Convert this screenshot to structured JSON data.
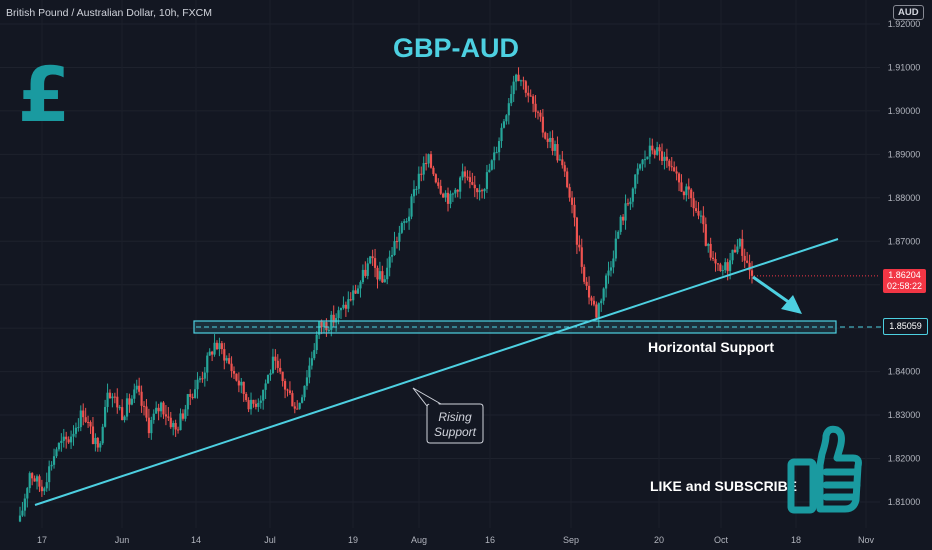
{
  "header": {
    "symbol": "British Pound / Australian Dollar, 10h, FXCM",
    "currency": "AUD"
  },
  "price_boxes": {
    "current_price": "1.86204",
    "countdown": "02:58:22",
    "support_level": "1.85059"
  },
  "annotations": {
    "title": "GBP-AUD",
    "horizontal_support": "Horizontal Support",
    "rising_support_line1": "Rising",
    "rising_support_line2": "Support",
    "cta": "LIKE and SUBSCRIBE"
  },
  "icons": {
    "pound": "£",
    "thumb": "thumbs-up-icon"
  },
  "colors": {
    "background": "#131722",
    "up": "#26a69a",
    "down": "#ef5350",
    "accent": "#4dd0e1",
    "pound": "#1a9aa0",
    "current_price": "#f23645"
  },
  "chart_data": {
    "type": "candlestick",
    "symbol": "British Pound / Australian Dollar",
    "timeframe": "10h",
    "source": "FXCM",
    "y_ticks": [
      "1.92000",
      "1.91000",
      "1.90000",
      "1.89000",
      "1.88000",
      "1.87000",
      "1.86000",
      "1.85000",
      "1.84000",
      "1.83000",
      "1.82000",
      "1.81000"
    ],
    "y_range": [
      1.8035,
      1.92
    ],
    "x_ticks": [
      "17",
      "Jun",
      "14",
      "Jul",
      "19",
      "Aug",
      "16",
      "Sep",
      "20",
      "Oct",
      "18",
      "Nov"
    ],
    "current_price": 1.86204,
    "horizontal_support": 1.85059,
    "rising_support": {
      "from": {
        "time": "May 17",
        "price": 1.8095
      },
      "to": {
        "time": "Oct 27",
        "price": 1.8705
      }
    },
    "path": [
      [
        0,
        1.8055
      ],
      [
        4,
        1.817
      ],
      [
        9,
        1.813
      ],
      [
        15,
        1.8225
      ],
      [
        20,
        1.8245
      ],
      [
        26,
        1.831
      ],
      [
        32,
        1.8215
      ],
      [
        36,
        1.8365
      ],
      [
        42,
        1.8305
      ],
      [
        48,
        1.8355
      ],
      [
        53,
        1.8275
      ],
      [
        58,
        1.8325
      ],
      [
        64,
        1.8265
      ],
      [
        70,
        1.8345
      ],
      [
        75,
        1.8395
      ],
      [
        80,
        1.8465
      ],
      [
        84,
        1.844
      ],
      [
        89,
        1.8385
      ],
      [
        95,
        1.832
      ],
      [
        99,
        1.8345
      ],
      [
        104,
        1.842
      ],
      [
        109,
        1.8365
      ],
      [
        114,
        1.8315
      ],
      [
        119,
        1.8415
      ],
      [
        123,
        1.8505
      ],
      [
        128,
        1.8515
      ],
      [
        133,
        1.8545
      ],
      [
        139,
        1.8595
      ],
      [
        144,
        1.8655
      ],
      [
        149,
        1.8605
      ],
      [
        154,
        1.8695
      ],
      [
        160,
        1.8765
      ],
      [
        164,
        1.8855
      ],
      [
        168,
        1.8885
      ],
      [
        173,
        1.8825
      ],
      [
        177,
        1.8795
      ],
      [
        182,
        1.8855
      ],
      [
        186,
        1.8815
      ],
      [
        191,
        1.8835
      ],
      [
        195,
        1.8895
      ],
      [
        200,
        1.9005
      ],
      [
        204,
        1.9095
      ],
      [
        208,
        1.9055
      ],
      [
        212,
        1.8995
      ],
      [
        216,
        1.8945
      ],
      [
        220,
        1.8915
      ],
      [
        225,
        1.8835
      ],
      [
        229,
        1.8705
      ],
      [
        233,
        1.8595
      ],
      [
        237,
        1.8535
      ],
      [
        240,
        1.8595
      ],
      [
        243,
        1.8655
      ],
      [
        247,
        1.8745
      ],
      [
        251,
        1.8805
      ],
      [
        255,
        1.8875
      ],
      [
        260,
        1.8915
      ],
      [
        264,
        1.8895
      ],
      [
        268,
        1.8855
      ],
      [
        272,
        1.8825
      ],
      [
        276,
        1.8795
      ],
      [
        280,
        1.8745
      ],
      [
        284,
        1.8655
      ],
      [
        288,
        1.8625
      ],
      [
        292,
        1.8655
      ],
      [
        295,
        1.8705
      ],
      [
        298,
        1.8665
      ],
      [
        301,
        1.86204
      ]
    ]
  }
}
